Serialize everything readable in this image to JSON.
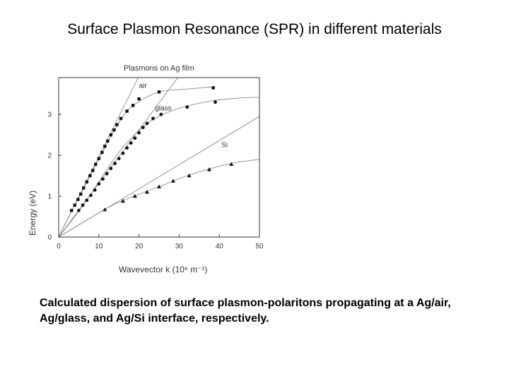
{
  "slide": {
    "title": "Surface Plasmon Resonance (SPR) in different materials",
    "caption": "Calculated dispersion of surface plasmon-polaritons propagating at a Ag/air, Ag/glass, and Ag/Si interface, respectively."
  },
  "chart_data": {
    "type": "scatter",
    "title": "Plasmons on Ag film",
    "xlabel": "Wavevector k (10⁶ m⁻¹)",
    "ylabel": "Energy (eV)",
    "xlim": [
      0,
      50
    ],
    "ylim": [
      0,
      3.9
    ],
    "xticks": [
      0,
      10,
      20,
      30,
      40,
      50
    ],
    "yticks": [
      0,
      1,
      2,
      3
    ],
    "grid": false,
    "colors": {
      "axis": "#333333",
      "marker": "#111111",
      "line": "#8a8a8a"
    },
    "light_lines": [
      {
        "label": "air",
        "points": [
          [
            0,
            0
          ],
          [
            19.8,
            3.9
          ]
        ]
      },
      {
        "label": "glass",
        "points": [
          [
            0,
            0
          ],
          [
            29.7,
            3.9
          ]
        ]
      },
      {
        "label": "Si",
        "points": [
          [
            0,
            0
          ],
          [
            50,
            2.95
          ]
        ]
      }
    ],
    "curves": [
      {
        "label": "air",
        "points": [
          [
            2.5,
            0.5
          ],
          [
            6,
            1.15
          ],
          [
            10,
            1.9
          ],
          [
            13,
            2.45
          ],
          [
            16,
            2.95
          ],
          [
            19,
            3.25
          ],
          [
            25,
            3.55
          ],
          [
            32,
            3.62
          ],
          [
            39,
            3.68
          ]
        ]
      },
      {
        "label": "glass",
        "points": [
          [
            4,
            0.5
          ],
          [
            8,
            1.05
          ],
          [
            12,
            1.65
          ],
          [
            16,
            2.2
          ],
          [
            20,
            2.6
          ],
          [
            24,
            2.9
          ],
          [
            30,
            3.15
          ],
          [
            38,
            3.33
          ],
          [
            45,
            3.4
          ],
          [
            50,
            3.42
          ]
        ]
      },
      {
        "label": "Si",
        "points": [
          [
            11,
            0.65
          ],
          [
            15,
            0.85
          ],
          [
            20,
            1.05
          ],
          [
            26,
            1.27
          ],
          [
            32,
            1.5
          ],
          [
            38,
            1.68
          ],
          [
            44,
            1.82
          ],
          [
            50,
            1.9
          ]
        ]
      }
    ],
    "series": [
      {
        "name": "air",
        "marker": "square",
        "x": [
          3.2,
          4,
          4.8,
          5.5,
          6.2,
          7,
          7.8,
          8.5,
          9.2,
          10,
          10.8,
          11.5,
          12.2,
          13,
          13.8,
          14.5,
          15.5,
          17,
          18.5,
          20,
          25,
          38.5
        ],
        "y": [
          0.65,
          0.78,
          0.92,
          1.05,
          1.2,
          1.35,
          1.5,
          1.63,
          1.78,
          1.92,
          2.07,
          2.22,
          2.35,
          2.5,
          2.62,
          2.75,
          2.9,
          3.08,
          3.22,
          3.38,
          3.55,
          3.65
        ]
      },
      {
        "name": "glass",
        "marker": "circle",
        "x": [
          5,
          6,
          7,
          8,
          9,
          10,
          11,
          12,
          13,
          14,
          15,
          16,
          17,
          18,
          19,
          20,
          21,
          22,
          23.5,
          25.5,
          32,
          39
        ],
        "y": [
          0.65,
          0.78,
          0.9,
          1.02,
          1.15,
          1.3,
          1.42,
          1.55,
          1.68,
          1.8,
          1.92,
          2.05,
          2.18,
          2.3,
          2.42,
          2.55,
          2.68,
          2.78,
          2.9,
          3.0,
          3.18,
          3.3
        ]
      },
      {
        "name": "Si",
        "marker": "triangle",
        "x": [
          11.5,
          16,
          19,
          22,
          25,
          28.5,
          32.5,
          37.5,
          43
        ],
        "y": [
          0.67,
          0.88,
          1.0,
          1.1,
          1.23,
          1.37,
          1.5,
          1.65,
          1.78
        ]
      }
    ],
    "annotations": [
      {
        "text": "air",
        "x": 20,
        "y": 3.65
      },
      {
        "text": "glass",
        "x": 24,
        "y": 3.1
      },
      {
        "text": "Si",
        "x": 40.5,
        "y": 2.2
      }
    ]
  }
}
